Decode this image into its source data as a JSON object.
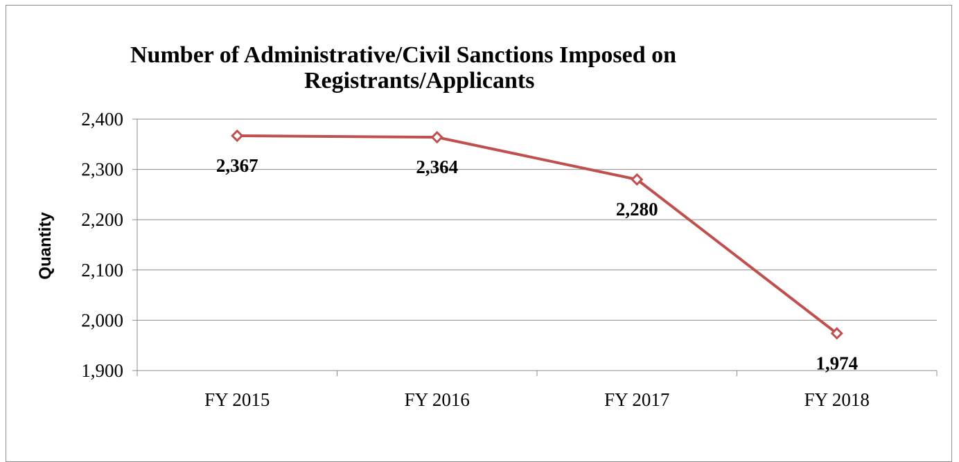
{
  "chart_data": {
    "type": "line",
    "title_lines": [
      "Number of Administrative/Civil Sanctions Imposed on",
      "Registrants/Applicants"
    ],
    "xlabel": "",
    "ylabel": "Quantity",
    "categories": [
      "FY 2015",
      "FY 2016",
      "FY 2017",
      "FY 2018"
    ],
    "series": [
      {
        "values": [
          2367,
          2364,
          2280,
          1974
        ],
        "color": "#c0504d"
      }
    ],
    "data_labels": [
      "2,367",
      "2,364",
      "2,280",
      "1,974"
    ],
    "ylim": [
      1900,
      2400
    ],
    "yticks": [
      1900,
      2000,
      2100,
      2200,
      2300,
      2400
    ],
    "ytick_labels": [
      "1,900",
      "2,000",
      "2,100",
      "2,200",
      "2,300",
      "2,400"
    ],
    "grid": true,
    "legend": "none"
  }
}
